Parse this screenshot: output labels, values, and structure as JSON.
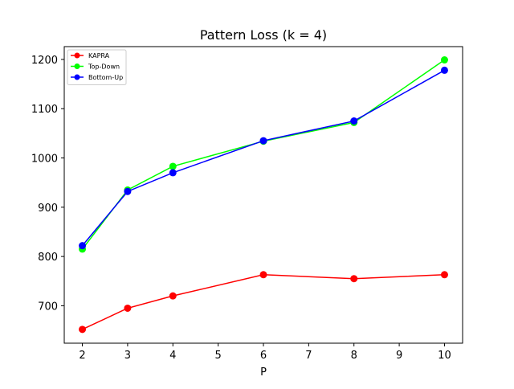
{
  "chart_data": {
    "type": "line",
    "title": "Pattern Loss (k = 4)",
    "xlabel": "P",
    "ylabel": "",
    "x": [
      2,
      3,
      4,
      6,
      8,
      10
    ],
    "xticks": [
      2,
      3,
      4,
      5,
      6,
      7,
      8,
      9,
      10
    ],
    "yticks": [
      700,
      800,
      900,
      1000,
      1100,
      1200
    ],
    "xlim": [
      1.6,
      10.4
    ],
    "ylim": [
      624,
      1226
    ],
    "grid": false,
    "legend_position": "top-left",
    "series": [
      {
        "name": "KAPRA",
        "color": "#ff0000",
        "values": [
          652,
          695,
          720,
          763,
          755,
          763
        ]
      },
      {
        "name": "Top-Down",
        "color": "#00ff00",
        "values": [
          815,
          935,
          983,
          1034,
          1072,
          1199
        ]
      },
      {
        "name": "Bottom-Up",
        "color": "#0000ff",
        "values": [
          822,
          932,
          970,
          1035,
          1075,
          1178
        ]
      }
    ]
  }
}
